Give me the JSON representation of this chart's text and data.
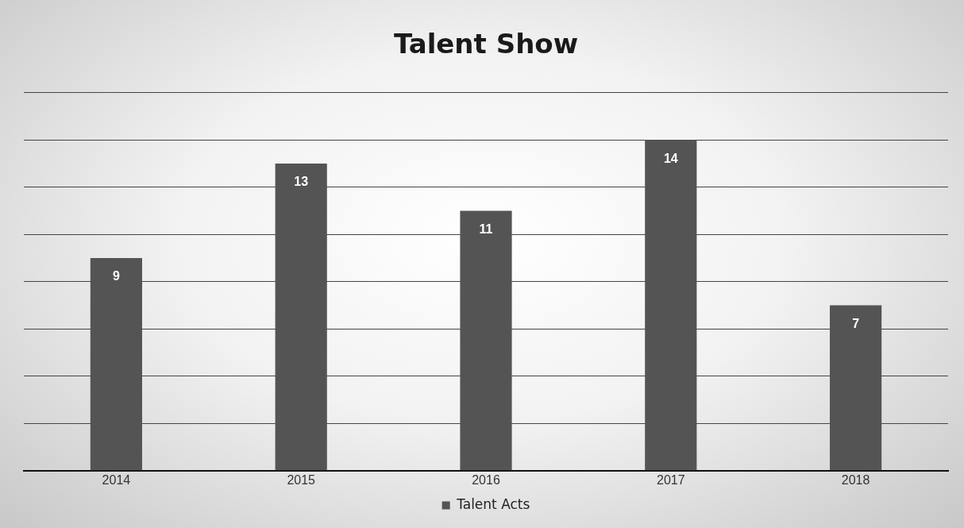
{
  "chart_data": {
    "type": "bar",
    "title": "Talent Show",
    "categories": [
      "2014",
      "2015",
      "2016",
      "2017",
      "2018"
    ],
    "series": [
      {
        "name": "Talent Acts",
        "color": "#545454",
        "values": [
          9,
          13,
          11,
          14,
          7
        ]
      }
    ],
    "ylim": [
      0,
      16
    ],
    "yticks": [
      {
        "value": 0,
        "label": null
      },
      {
        "value": 2,
        "label": null
      },
      {
        "value": 4,
        "label": null
      },
      {
        "value": 6,
        "label": null
      },
      {
        "value": 8,
        "label": null
      },
      {
        "value": 10,
        "label": null
      },
      {
        "value": 12,
        "label": null
      },
      {
        "value": 14,
        "label": null
      },
      {
        "value": 16,
        "label": null
      }
    ],
    "tick_labels": "x",
    "grid": "y",
    "legend": "bottom",
    "data_labels": true
  }
}
